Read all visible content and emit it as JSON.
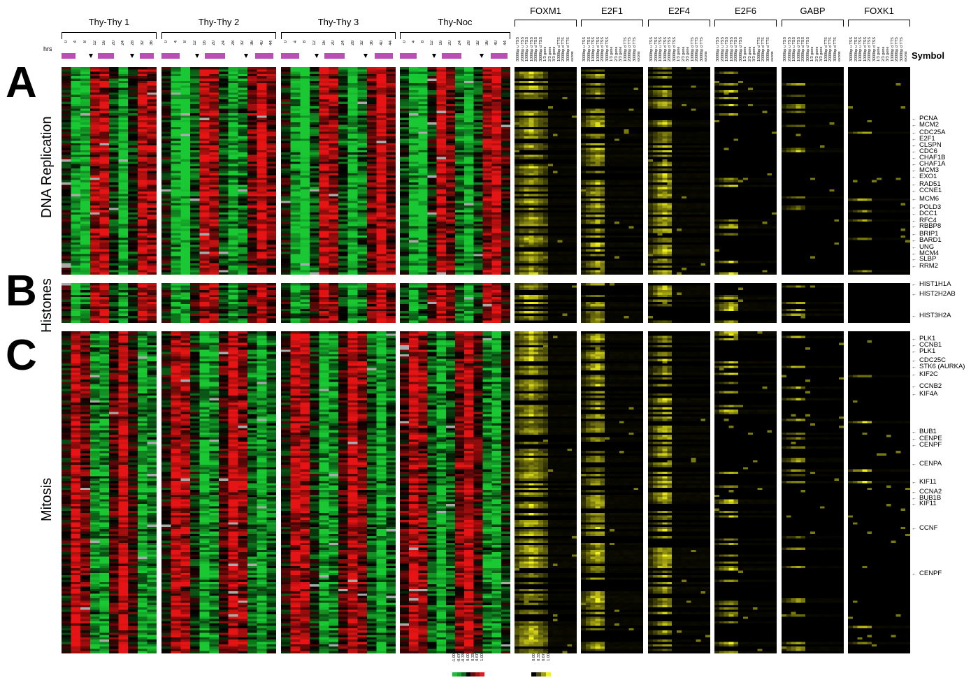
{
  "groups_expr": [
    {
      "name": "Thy-Thy 1"
    },
    {
      "name": "Thy-Thy 2"
    },
    {
      "name": "Thy-Thy 3"
    },
    {
      "name": "Thy-Noc"
    }
  ],
  "groups_tf": [
    {
      "name": "FOXM1"
    },
    {
      "name": "E2F1"
    },
    {
      "name": "E2F4"
    },
    {
      "name": "E2F6"
    },
    {
      "name": "GABP"
    },
    {
      "name": "FOXK1"
    }
  ],
  "hrs_label": "hrs",
  "time_ticks": [
    [
      "0",
      "4",
      "8",
      "12",
      "16",
      "20",
      "24",
      "28",
      "32",
      "36"
    ],
    [
      "0",
      "4",
      "8",
      "12",
      "16",
      "20",
      "24",
      "28",
      "32",
      "36",
      "40",
      "44"
    ],
    [
      "0",
      "4",
      "8",
      "12",
      "16",
      "20",
      "24",
      "28",
      "32",
      "36",
      "40",
      "44"
    ],
    [
      "0",
      "4",
      "8",
      "12",
      "16",
      "20",
      "24",
      "28",
      "32",
      "36",
      "40",
      "44"
    ]
  ],
  "feature_labels": [
    "3000bp u TSS",
    "2000bp u TSS",
    "1000bp u TSS",
    "1000bp d TSS",
    "2000bp d TSS",
    "3000bp d TSS",
    "1/3 gene",
    "2/3 gene",
    "3/3 gene",
    "1000bp d TTS",
    "2000bp d TTS",
    "3000bp d TTS",
    "exons"
  ],
  "symbol_header": "Symbol",
  "sections": [
    {
      "letter": "A",
      "label": "DNA Replication"
    },
    {
      "letter": "B",
      "label": "Histones"
    },
    {
      "letter": "C",
      "label": "Mitosis"
    }
  ],
  "symbols": [
    "PCNA",
    "MCM2",
    "CDC25A",
    "E2F1",
    "CLSPN",
    "CDC6",
    "CHAF1B",
    "CHAF1A",
    "MCM3",
    "EXO1",
    "RAD51",
    "CCNE1",
    "MCM6",
    "POLD3",
    "DCC1",
    "RFC4",
    "RBBP8",
    "BRIP1",
    "BARD1",
    "UNG",
    "MCM4",
    "SLBP",
    "RRM2",
    "HIST1H1A",
    "HIST2H2AB",
    "HIST3H2A",
    "PLK1",
    "CCNB1",
    "PLK1",
    "CDC25C",
    "STK6 (AURKA)",
    "KIF2C",
    "CCNB2",
    "KIF4A",
    "BUB1",
    "CENPE",
    "CENPF",
    "CENPA",
    "KIF11",
    "CCNA2",
    "BUB1B",
    "KIF11",
    "CCNF",
    "CENPF"
  ],
  "expr_legend": {
    "labels": [
      "-1.00",
      "-0.67",
      "-0.33",
      "0.00",
      "0.33",
      "0.67",
      "1.00"
    ],
    "colors": [
      "#1fbf3a",
      "#16a02c",
      "#0b6a1b",
      "#000000",
      "#6a0b0b",
      "#a51515",
      "#e01d1d"
    ]
  },
  "tf_legend": {
    "labels": [
      "0.00",
      "0.33",
      "0.67",
      "1.00"
    ],
    "colors": [
      "#000000",
      "#4a4a0a",
      "#9c9c14",
      "#f2f21d"
    ]
  }
}
